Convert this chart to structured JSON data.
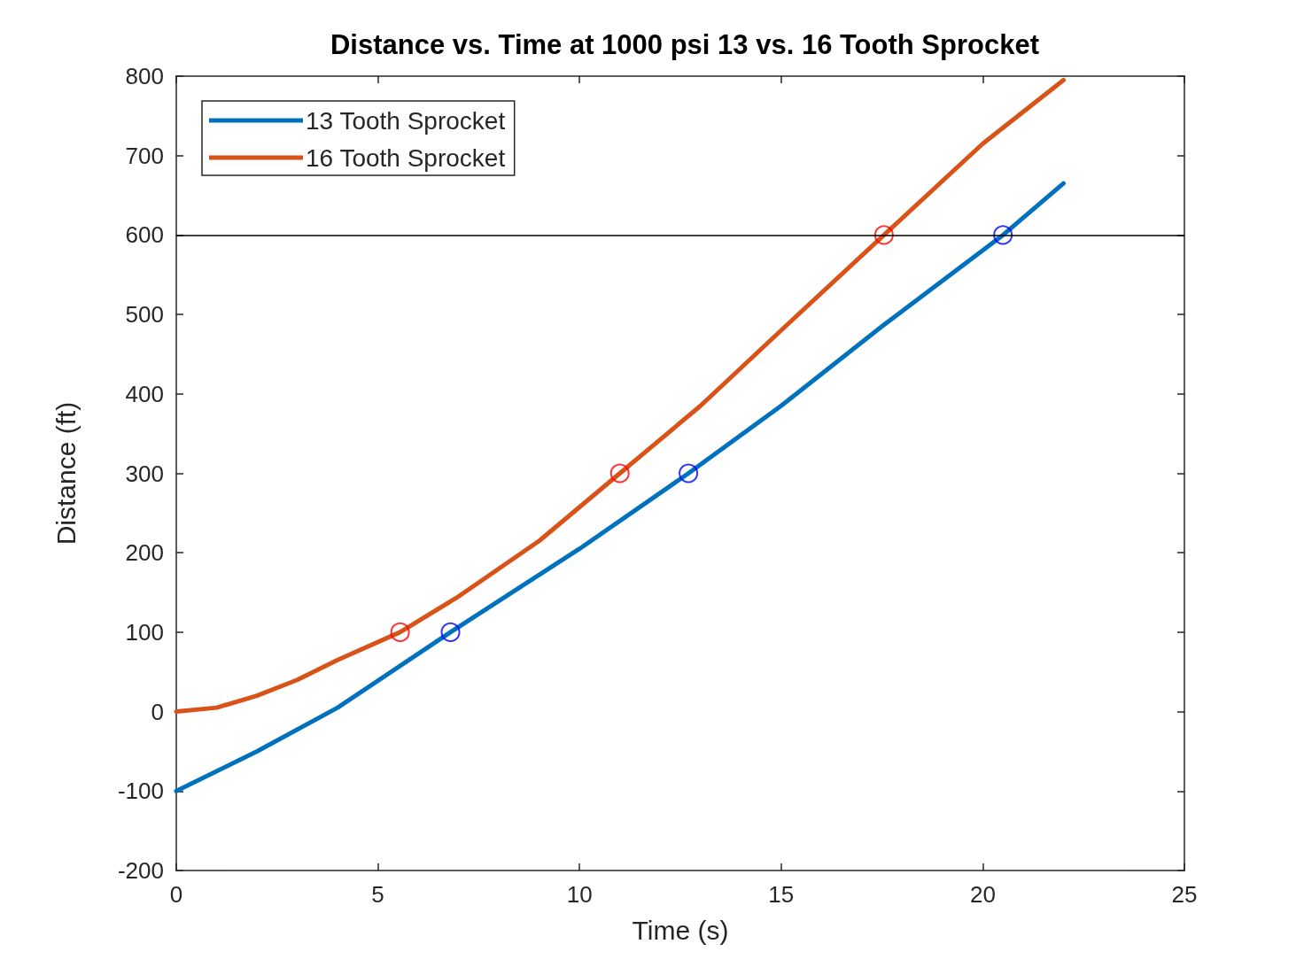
{
  "chart_data": {
    "type": "line",
    "title": "Distance vs. Time at 1000 psi 13 vs. 16 Tooth Sprocket",
    "xlabel": "Time (s)",
    "ylabel": "Distance (ft)",
    "xlim": [
      0,
      25
    ],
    "xticks": [
      0,
      5,
      10,
      15,
      20,
      25
    ],
    "ylim": [
      -200,
      800
    ],
    "yticks": [
      -200,
      -100,
      0,
      100,
      200,
      300,
      400,
      500,
      600,
      700,
      800
    ],
    "grid": false,
    "legend": "top left",
    "series": [
      {
        "name": "13 Tooth Sprocket",
        "type": "line",
        "color": "#0072bd",
        "marker": "none",
        "line_style": "solid",
        "x": [
          0,
          2,
          4,
          6.8,
          10,
          12.7,
          15,
          17.5,
          20.5,
          22
        ],
        "values": [
          -100,
          -50,
          5,
          100,
          205,
          300,
          385,
          485,
          600,
          665
        ]
      },
      {
        "name": "16 Tooth Sprocket",
        "type": "line",
        "color": "#d95319",
        "marker": "none",
        "line_style": "solid",
        "x": [
          0,
          1,
          2,
          3,
          4,
          5.55,
          7,
          9,
          11,
          13,
          15,
          17.55,
          20,
          22
        ],
        "values": [
          0,
          5,
          20,
          40,
          65,
          100,
          145,
          215,
          300,
          385,
          480,
          600,
          715,
          795
        ]
      },
      {
        "type": "scatter",
        "color": "#0000ff",
        "marker": "circle",
        "x": [
          6.8,
          12.7,
          20.5
        ],
        "values": [
          100,
          300,
          600
        ]
      },
      {
        "type": "scatter",
        "color": "#ff0000",
        "marker": "circle",
        "x": [
          5.55,
          11,
          17.55
        ],
        "values": [
          100,
          300,
          600
        ]
      }
    ],
    "ref_lines": [
      {
        "axis": "y",
        "value": 600,
        "color": "#000000",
        "line_style": "solid"
      }
    ]
  }
}
